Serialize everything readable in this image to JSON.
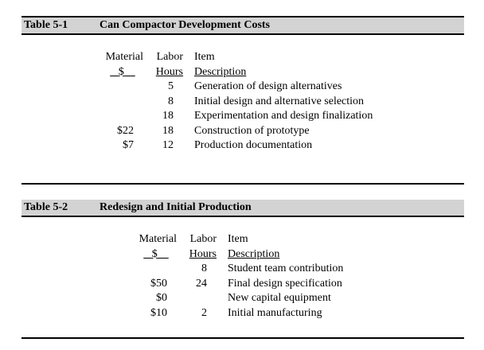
{
  "table1": {
    "number": "Table 5-1",
    "title": "Can Compactor Development Costs",
    "col_headers": {
      "material_top": "Material",
      "material_bottom": "$",
      "labor_top": "Labor",
      "labor_bottom": "Hours",
      "item_top": "Item",
      "item_bottom": "Description"
    },
    "rows": [
      {
        "material": "",
        "hours": "5",
        "description": "Generation of design alternatives"
      },
      {
        "material": "",
        "hours": "8",
        "description": "Initial design and alternative selection"
      },
      {
        "material": "",
        "hours": "18",
        "description": "Experimentation and design finalization"
      },
      {
        "material": "$22",
        "hours": "18",
        "description": "Construction of prototype"
      },
      {
        "material": "$7",
        "hours": "12",
        "description": "Production documentation"
      }
    ]
  },
  "table2": {
    "number": "Table 5-2",
    "title": "Redesign and Initial Production",
    "col_headers": {
      "material_top": "Material",
      "material_bottom": "$",
      "labor_top": "Labor",
      "labor_bottom": "Hours",
      "item_top": "Item",
      "item_bottom": "Description"
    },
    "rows": [
      {
        "material": "",
        "hours": "8",
        "description": "Student team contribution"
      },
      {
        "material": "$50",
        "hours": "24",
        "description": "Final design specification"
      },
      {
        "material": "$0",
        "hours": "",
        "description": "New capital equipment"
      },
      {
        "material": "$10",
        "hours": "2",
        "description": "Initial manufacturing"
      }
    ]
  }
}
